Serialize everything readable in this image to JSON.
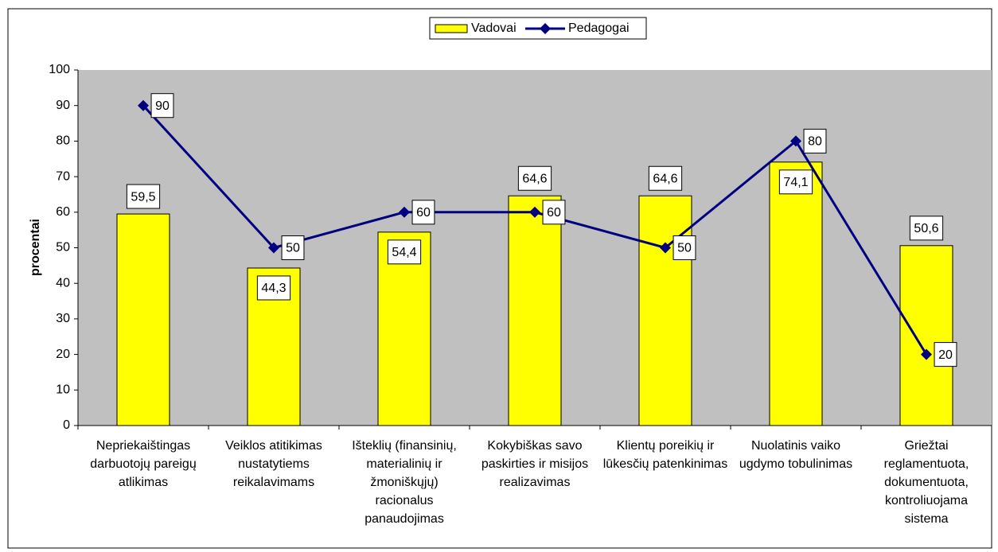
{
  "chart_data": {
    "type": "bar-line",
    "y_label": "procentai",
    "categories": [
      "Nepriekaištingas darbuotojų pareigų atlikimas",
      "Veiklos atitikimas nustatytiems reikalavimams",
      "Išteklių (finansinių, materialinių ir žmoniškųjų) racionalus panaudojimas",
      "Kokybiškas savo paskirties ir misijos realizavimas",
      "Klientų poreikių ir lūkesčių patenkinimas",
      "Nuolatinis vaiko ugdymo tobulinimas",
      "Griežtai reglamentuota, dokumentuota, kontroliuojama sistema"
    ],
    "series": [
      {
        "name": "Vadovai",
        "type": "bar",
        "color": "#ffff00",
        "values": [
          59.5,
          44.3,
          54.4,
          64.6,
          64.6,
          74.1,
          50.6
        ],
        "value_labels": [
          "59,5",
          "44,3",
          "54,4",
          "64,6",
          "64,6",
          "74,1",
          "50,6"
        ]
      },
      {
        "name": "Pedagogai",
        "type": "line",
        "color": "#000080",
        "values": [
          90,
          50,
          60,
          60,
          50,
          80,
          20
        ]
      }
    ],
    "ylim": [
      0,
      100
    ],
    "yticks": [
      0,
      10,
      20,
      30,
      40,
      50,
      60,
      70,
      80,
      90,
      100
    ],
    "grid": false,
    "legend": "top"
  }
}
